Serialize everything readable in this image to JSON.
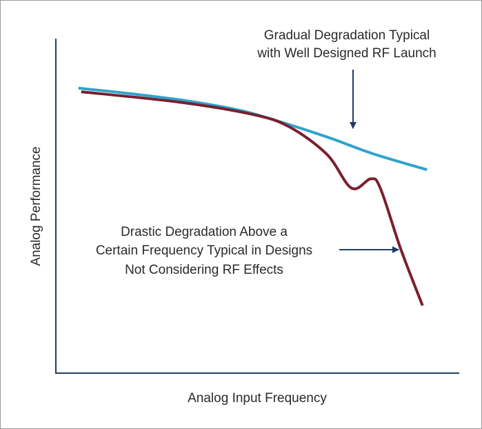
{
  "chart_data": {
    "type": "line",
    "title": "",
    "xlabel": "Analog Input Frequency",
    "ylabel": "Analog Performance",
    "xlim": [
      0,
      100
    ],
    "ylim": [
      0,
      100
    ],
    "grid": false,
    "ticks": false,
    "series": [
      {
        "color": "#2ea3cc",
        "points": [
          [
            5.6,
            85.2
          ],
          [
            18.8,
            83.5
          ],
          [
            32.5,
            81.4
          ],
          [
            46.2,
            78.4
          ],
          [
            58.1,
            74.2
          ],
          [
            68.4,
            70.1
          ],
          [
            78.6,
            65.6
          ],
          [
            92.0,
            60.8
          ]
        ]
      },
      {
        "color": "#7a1f2e",
        "points": [
          [
            6.3,
            84.1
          ],
          [
            30.6,
            81.0
          ],
          [
            48.9,
            77.3
          ],
          [
            57.9,
            73.6
          ],
          [
            67.2,
            65.4
          ],
          [
            73.3,
            55.3
          ],
          [
            78.1,
            58.1
          ],
          [
            80.5,
            55.1
          ],
          [
            85.5,
            37.1
          ],
          [
            90.9,
            20.2
          ]
        ]
      }
    ],
    "annotations": [
      {
        "lines": [
          "Gradual Degradation Typical",
          "with Well Designed RF Launch"
        ],
        "arrow": "down",
        "target_series": 0
      },
      {
        "lines": [
          "Drastic Degradation Above a",
          "Certain Frequency Typical in Designs",
          "Not Considering RF Effects"
        ],
        "arrow": "right",
        "target_series": 1
      }
    ],
    "axis_color": "#1f3d66",
    "arrow_color": "#1f3d66"
  }
}
